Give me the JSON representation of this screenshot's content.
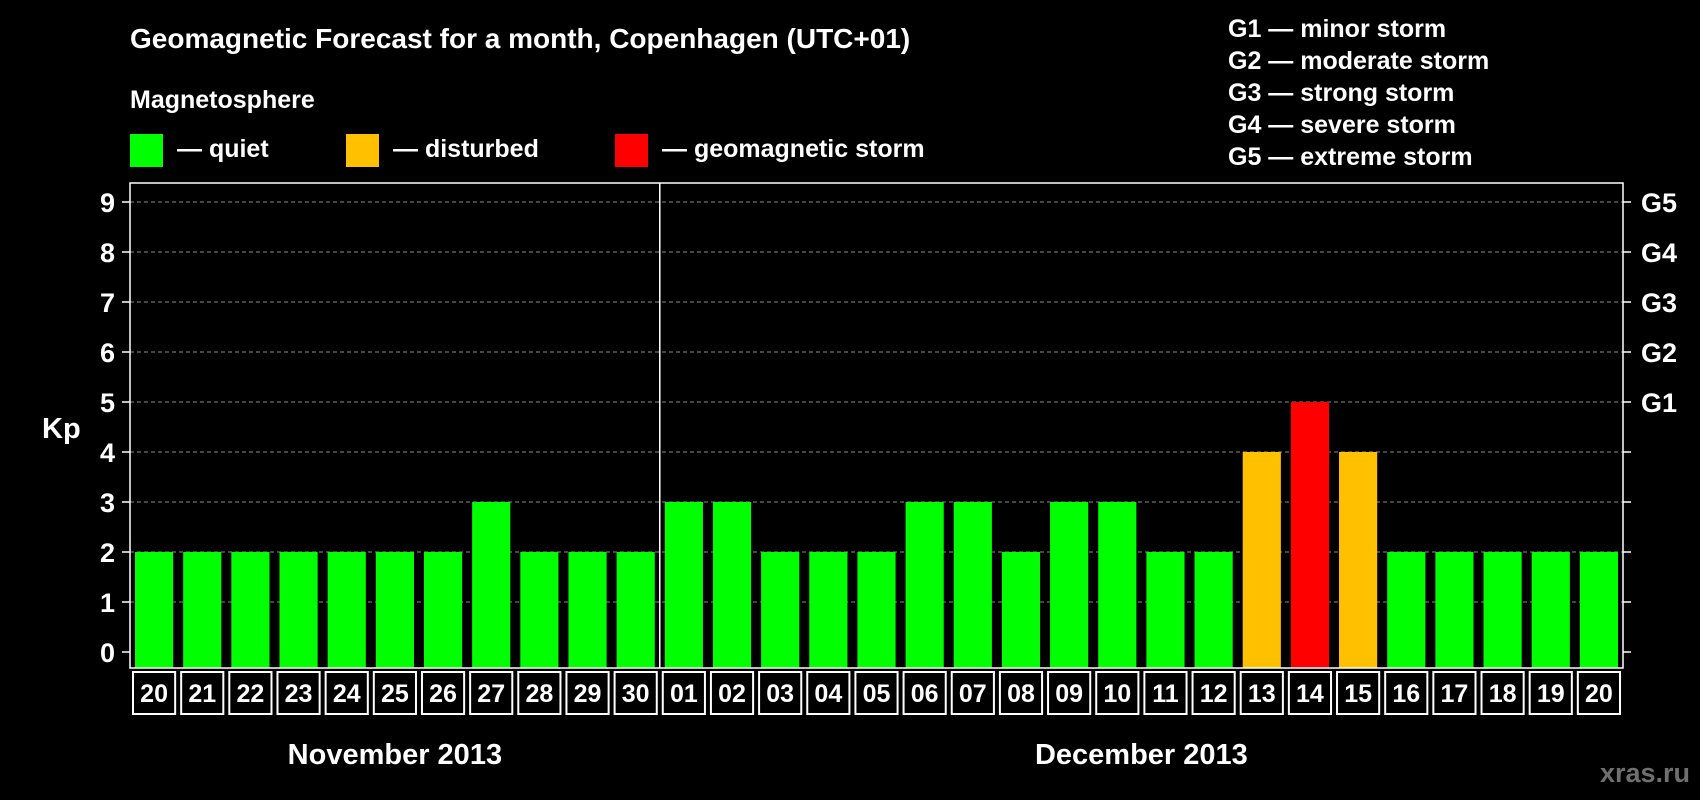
{
  "chart_data": {
    "type": "bar",
    "title": "Geomagnetic Forecast for a month, Copenhagen (UTC+01)",
    "subtitle": "Magnetosphere",
    "legend": [
      {
        "label": "— quiet",
        "color": "#00ff00"
      },
      {
        "label": "— disturbed",
        "color": "#ffc000"
      },
      {
        "label": "— geomagnetic storm",
        "color": "#ff0000"
      }
    ],
    "storm_scale": [
      "G1 — minor storm",
      "G2 — moderate storm",
      "G3 — strong storm",
      "G4 — severe storm",
      "G5 — extreme storm"
    ],
    "ylabel": "Kp",
    "ylim": [
      0,
      9
    ],
    "yticks": [
      "0",
      "1",
      "2",
      "3",
      "4",
      "5",
      "6",
      "7",
      "8",
      "9"
    ],
    "right_ticks": [
      {
        "value": 5,
        "label": "G1"
      },
      {
        "value": 6,
        "label": "G2"
      },
      {
        "value": 7,
        "label": "G3"
      },
      {
        "value": 8,
        "label": "G4"
      },
      {
        "value": 9,
        "label": "G5"
      }
    ],
    "categories": [
      "20",
      "21",
      "22",
      "23",
      "24",
      "25",
      "26",
      "27",
      "28",
      "29",
      "30",
      "01",
      "02",
      "03",
      "04",
      "05",
      "06",
      "07",
      "08",
      "09",
      "10",
      "11",
      "12",
      "13",
      "14",
      "15",
      "16",
      "17",
      "18",
      "19",
      "20"
    ],
    "values": [
      2,
      2,
      2,
      2,
      2,
      2,
      2,
      3,
      2,
      2,
      2,
      3,
      3,
      2,
      2,
      2,
      3,
      3,
      2,
      3,
      3,
      2,
      2,
      4,
      5,
      4,
      2,
      2,
      2,
      2,
      2
    ],
    "months": [
      {
        "label": "November 2013",
        "start_index": 0,
        "end_index": 10
      },
      {
        "label": "December 2013",
        "start_index": 11,
        "end_index": 30
      }
    ],
    "thresholds": {
      "disturbed": 4,
      "storm": 5
    },
    "colors": {
      "quiet": "#00ff00",
      "disturbed": "#ffc000",
      "storm": "#ff0000"
    }
  },
  "watermark": "xras.ru"
}
